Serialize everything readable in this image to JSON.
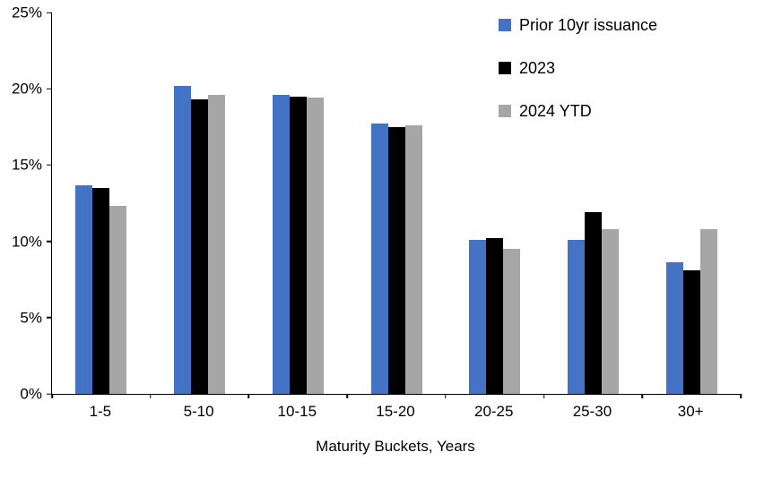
{
  "chart_data": {
    "type": "bar",
    "title": "",
    "xlabel": "Maturity Buckets, Years",
    "ylabel": "",
    "ylim": [
      0,
      25
    ],
    "yticks": [
      0,
      5,
      10,
      15,
      20,
      25
    ],
    "ytick_format": "percent",
    "grid": false,
    "legend_position": "top-right",
    "categories": [
      "1-5",
      "5-10",
      "10-15",
      "15-20",
      "20-25",
      "25-30",
      "30+"
    ],
    "series": [
      {
        "name": "Prior 10yr issuance",
        "color": "#4472C4",
        "values": [
          13.7,
          20.2,
          19.6,
          17.7,
          10.1,
          10.1,
          8.6
        ]
      },
      {
        "name": "2023",
        "color": "#000000",
        "values": [
          13.5,
          19.3,
          19.5,
          17.5,
          10.2,
          11.9,
          8.1
        ]
      },
      {
        "name": "2024 YTD",
        "color": "#A6A6A6",
        "values": [
          12.3,
          19.6,
          19.4,
          17.6,
          9.5,
          10.8,
          10.8
        ]
      }
    ]
  }
}
